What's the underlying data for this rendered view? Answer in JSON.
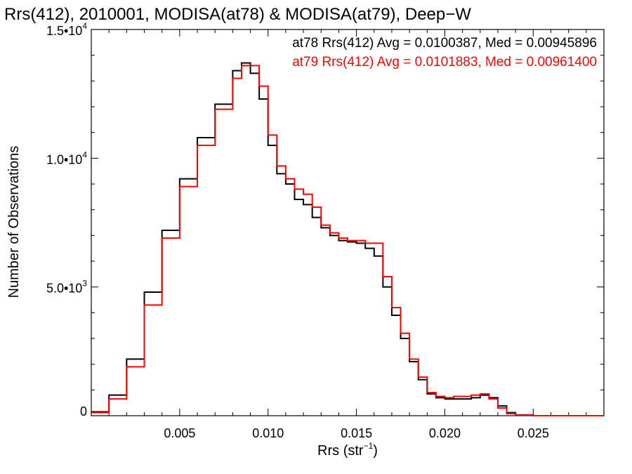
{
  "chart_data": {
    "type": "line",
    "title": "Rrs(412), 2010001, MODISA(at78) & MODISA(at79), Deep−W",
    "xlabel": "Rrs (str",
    "xlabel_sup": "−1",
    "xlabel_tail": ")",
    "ylabel": "Number of Observations",
    "xlim": [
      0.0,
      0.029
    ],
    "ylim": [
      0,
      15000
    ],
    "x_ticks": [
      {
        "value": 0.005,
        "label": "0.005"
      },
      {
        "value": 0.01,
        "label": "0.010"
      },
      {
        "value": 0.015,
        "label": "0.015"
      },
      {
        "value": 0.02,
        "label": "0.020"
      },
      {
        "value": 0.025,
        "label": "0.025"
      }
    ],
    "y_ticks": [
      {
        "value": 0,
        "label": "0",
        "sup": ""
      },
      {
        "value": 5000,
        "label": "5.0•10",
        "sup": "3"
      },
      {
        "value": 10000,
        "label": "1.0•10",
        "sup": "4"
      },
      {
        "value": 15000,
        "label": "1.5•10",
        "sup": "4"
      }
    ],
    "grid": false,
    "legend_position": "top-right",
    "series": [
      {
        "name": "at78",
        "legend": "at78 Rrs(412) Avg = 0.0100387, Med = 0.00945896",
        "color": "#000000",
        "step": "histogram",
        "x": [
          0.0,
          0.001,
          0.002,
          0.003,
          0.004,
          0.005,
          0.006,
          0.007,
          0.008,
          0.0085,
          0.009,
          0.0095,
          0.01,
          0.0105,
          0.011,
          0.0115,
          0.012,
          0.0125,
          0.013,
          0.0135,
          0.014,
          0.0145,
          0.015,
          0.0155,
          0.016,
          0.0165,
          0.017,
          0.0175,
          0.018,
          0.0185,
          0.019,
          0.0195,
          0.02,
          0.0205,
          0.021,
          0.0215,
          0.022,
          0.0225,
          0.023,
          0.0235,
          0.024,
          0.025,
          0.026,
          0.027,
          0.028,
          0.029
        ],
        "y": [
          150,
          800,
          2200,
          4800,
          7200,
          9200,
          10800,
          12100,
          13400,
          13700,
          13300,
          12300,
          10500,
          9400,
          9000,
          8400,
          8200,
          7700,
          7300,
          7000,
          6800,
          6750,
          6700,
          6500,
          6200,
          5000,
          3900,
          3000,
          2100,
          1400,
          850,
          700,
          650,
          650,
          650,
          700,
          800,
          700,
          380,
          120,
          30,
          0,
          0,
          0,
          0,
          0
        ]
      },
      {
        "name": "at79",
        "legend": "at79 Rrs(412) Avg = 0.0101883, Med = 0.00961400",
        "color": "#ff0000",
        "step": "histogram",
        "x": [
          0.0,
          0.001,
          0.002,
          0.003,
          0.004,
          0.005,
          0.006,
          0.007,
          0.008,
          0.0085,
          0.009,
          0.0095,
          0.01,
          0.0105,
          0.011,
          0.0115,
          0.012,
          0.0125,
          0.013,
          0.0135,
          0.014,
          0.0145,
          0.015,
          0.0155,
          0.016,
          0.0165,
          0.017,
          0.0175,
          0.018,
          0.0185,
          0.019,
          0.0195,
          0.02,
          0.0205,
          0.021,
          0.0215,
          0.022,
          0.0225,
          0.023,
          0.0235,
          0.024,
          0.025,
          0.026,
          0.027,
          0.028,
          0.029
        ],
        "y": [
          120,
          650,
          1900,
          4300,
          6900,
          8900,
          10500,
          11900,
          13100,
          13600,
          13600,
          12800,
          10900,
          9700,
          9200,
          8800,
          8600,
          8100,
          7400,
          7100,
          6900,
          6800,
          6800,
          6700,
          6700,
          5400,
          4200,
          3200,
          2200,
          1500,
          900,
          750,
          700,
          750,
          750,
          800,
          850,
          650,
          300,
          80,
          20,
          0,
          0,
          0,
          0,
          0
        ]
      }
    ]
  }
}
